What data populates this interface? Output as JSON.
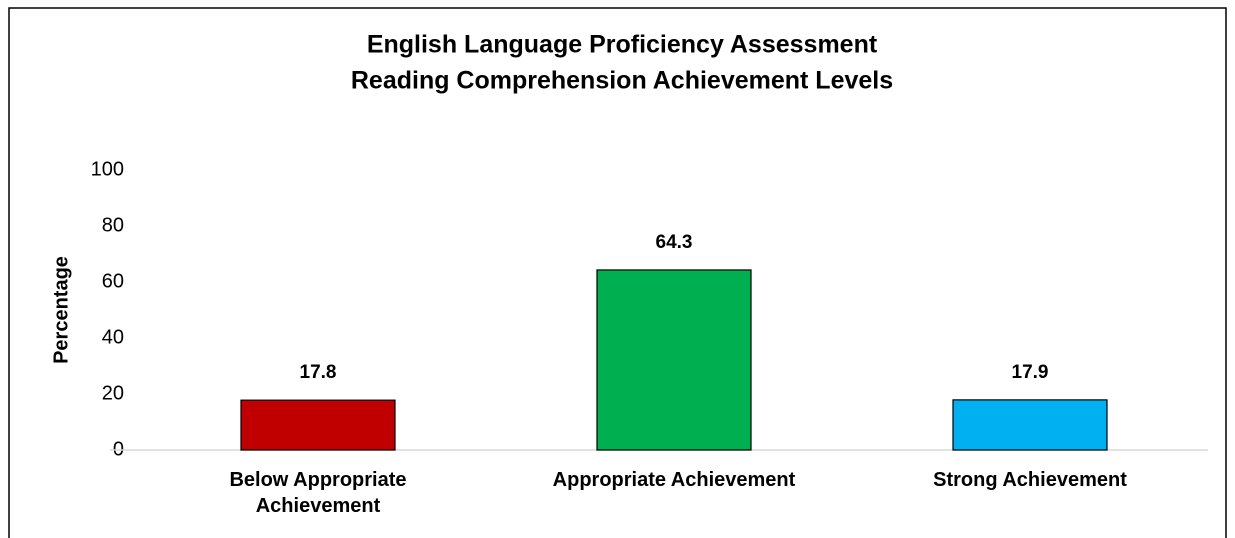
{
  "chart_data": {
    "type": "bar",
    "title": [
      "English Language Proficiency Assessment",
      "Reading Comprehension Achievement Levels"
    ],
    "y_label": "Percentage",
    "categories": [
      "Below Appropriate Achievement",
      "Appropriate Achievement",
      "Strong Achievement"
    ],
    "values": [
      17.8,
      64.3,
      17.9
    ],
    "colors": [
      "#c00000",
      "#00b050",
      "#00b0f0"
    ],
    "ylim": [
      0,
      100
    ],
    "yticks": [
      0,
      20,
      40,
      60,
      80,
      100
    ],
    "grid": false
  }
}
